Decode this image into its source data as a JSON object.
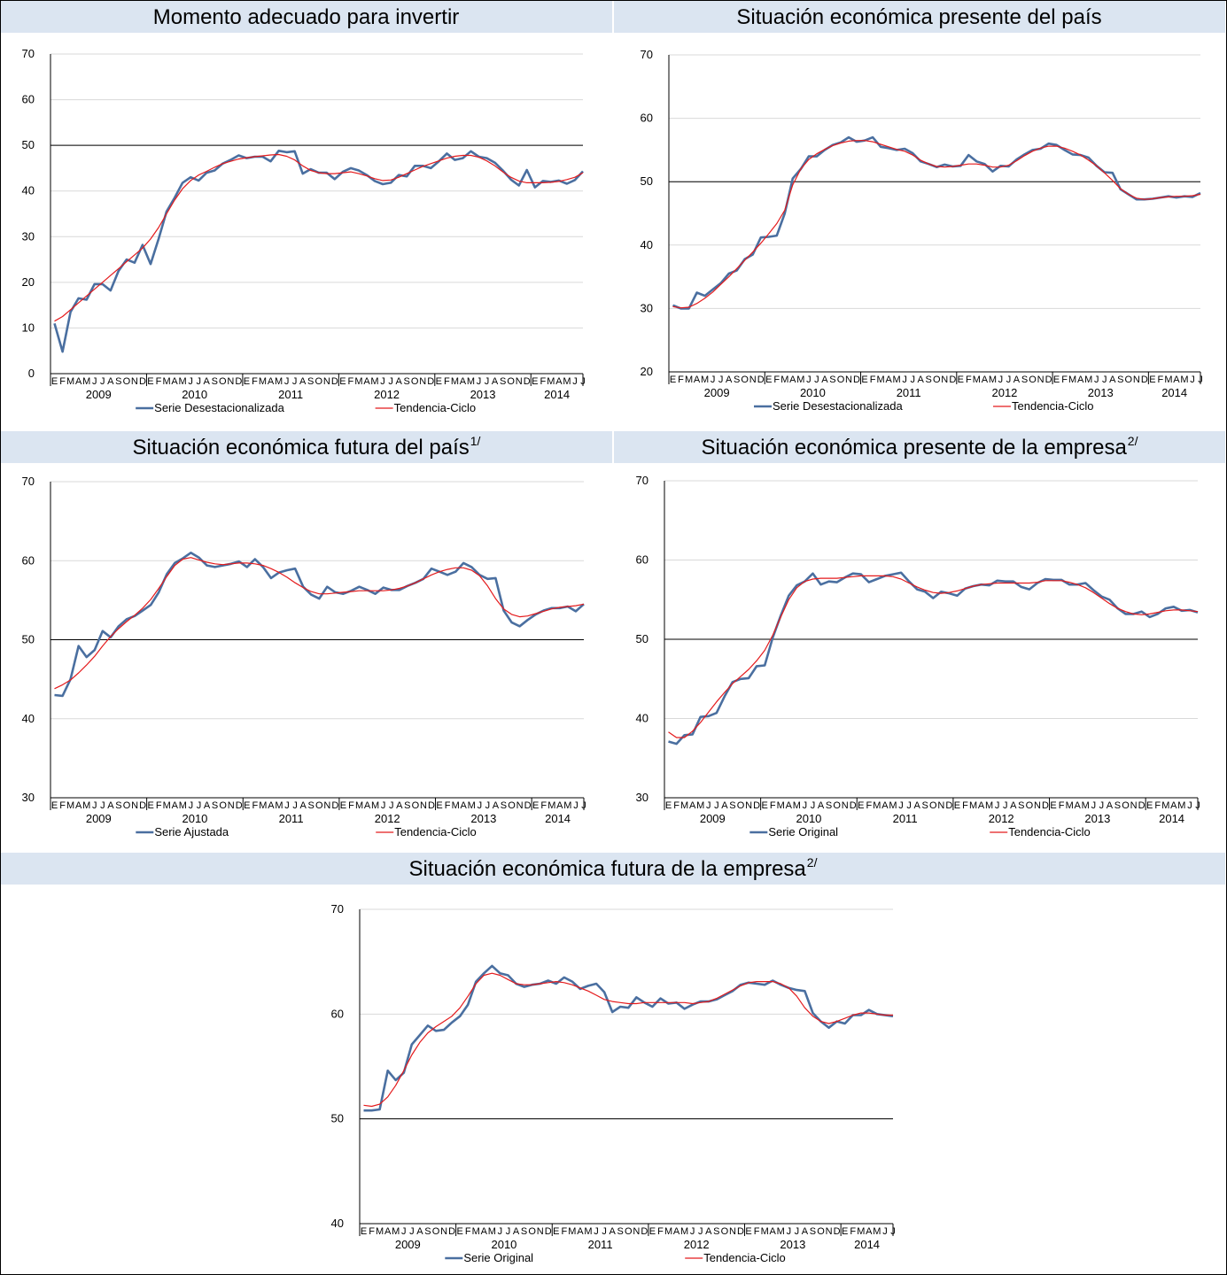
{
  "colors": {
    "serie": "#4a6fa0",
    "tendencia": "#e41a1c",
    "title_bg": "#dbe5f1",
    "grid": "#d9d9d9"
  },
  "months": [
    "E",
    "F",
    "M",
    "A",
    "M",
    "J",
    "J",
    "A",
    "S",
    "O",
    "N",
    "D"
  ],
  "years": [
    "2009",
    "2010",
    "2011",
    "2012",
    "2013",
    "2014"
  ],
  "charts": [
    {
      "id": "momento",
      "title": "Momento adecuado para invertir",
      "sup": "",
      "chart_data": {
        "type": "line",
        "ylim": [
          0,
          70
        ],
        "yticks": [
          0,
          10,
          20,
          30,
          40,
          50,
          60,
          70
        ],
        "threshold": 50,
        "legend": [
          "Serie Desestacionalizada",
          "Tendencia-Ciclo"
        ],
        "series": [
          {
            "name": "Serie Desestacionalizada",
            "values": [
              11,
              4.8,
              13.5,
              16.5,
              16.2,
              19.6,
              19.6,
              18.2,
              22.5,
              25,
              24.3,
              28.2,
              24,
              29.5,
              35.5,
              38.5,
              41.8,
              43,
              42.3,
              44,
              44.5,
              46,
              46.8,
              47.8,
              47.2,
              47.5,
              47.5,
              46.5,
              48.8,
              48.5,
              48.7,
              43.8,
              44.8,
              44,
              44,
              42.6,
              44.2,
              45,
              44.5,
              43.5,
              42.2,
              41.5,
              41.8,
              43.5,
              43.2,
              45.5,
              45.5,
              45,
              46.5,
              48.2,
              46.8,
              47.2,
              48.7,
              47.5,
              47.2,
              46.2,
              44.5,
              42.5,
              41.2,
              44.6,
              40.8,
              42.2,
              42,
              42.3,
              41.6,
              42.4,
              44.3
            ]
          },
          {
            "name": "Tendencia-Ciclo",
            "values": [
              11.5,
              12.5,
              14,
              15.5,
              17,
              18.5,
              20,
              21.5,
              23,
              24.5,
              26,
              27.5,
              29.5,
              32,
              35,
              38,
              40.5,
              42.3,
              43.5,
              44.3,
              45.2,
              46,
              46.5,
              47,
              47.3,
              47.5,
              47.7,
              47.9,
              48,
              47.6,
              46.8,
              45.5,
              44.5,
              44,
              43.8,
              43.8,
              44,
              44.2,
              43.8,
              43.3,
              42.7,
              42.3,
              42.4,
              43,
              43.8,
              44.6,
              45.4,
              46,
              46.6,
              47.2,
              47.6,
              47.8,
              47.8,
              47.4,
              46.6,
              45.5,
              44.2,
              43,
              42.2,
              41.8,
              41.8,
              41.8,
              41.9,
              42.1,
              42.5,
              43,
              44
            ]
          }
        ]
      }
    },
    {
      "id": "presente-pais",
      "title": "Situación económica presente del país",
      "sup": "",
      "chart_data": {
        "type": "line",
        "ylim": [
          20,
          70
        ],
        "yticks": [
          20,
          30,
          40,
          50,
          60,
          70
        ],
        "threshold": 50,
        "legend": [
          "Serie Desestacionalizada",
          "Tendencia-Ciclo"
        ],
        "series": [
          {
            "name": "Serie Desestacionalizada",
            "values": [
              30.5,
              30,
              30,
              32.5,
              32,
              33,
              34,
              35.5,
              36,
              37.8,
              38.5,
              41.2,
              41.3,
              41.5,
              45,
              50.5,
              52,
              54,
              54,
              55,
              55.8,
              56.2,
              57,
              56.3,
              56.5,
              57,
              55.5,
              55.3,
              55,
              55.2,
              54.5,
              53.2,
              52.8,
              52.3,
              52.7,
              52.4,
              52.5,
              54.2,
              53.2,
              52.8,
              51.6,
              52.5,
              52.4,
              53.5,
              54.3,
              55,
              55.2,
              56,
              55.8,
              55,
              54.3,
              54.2,
              53.8,
              52.5,
              51.5,
              51.4,
              48.8,
              48,
              47.2,
              47.2,
              47.3,
              47.5,
              47.7,
              47.5,
              47.7,
              47.6,
              48.2
            ]
          },
          {
            "name": "Tendencia-Ciclo",
            "values": [
              30.3,
              30.1,
              30.2,
              30.8,
              31.6,
              32.6,
              33.8,
              35,
              36.3,
              37.6,
              38.9,
              40.3,
              41.8,
              43.4,
              45.5,
              49.5,
              52,
              53.5,
              54.4,
              55.1,
              55.7,
              56.1,
              56.4,
              56.5,
              56.5,
              56.3,
              55.9,
              55.5,
              55.1,
              54.8,
              54.2,
              53.4,
              52.8,
              52.4,
              52.3,
              52.4,
              52.6,
              52.8,
              52.8,
              52.6,
              52.3,
              52.3,
              52.6,
              53.3,
              54.1,
              54.8,
              55.3,
              55.6,
              55.6,
              55.3,
              54.8,
              54.2,
              53.4,
              52.5,
              51.4,
              50.2,
              48.9,
              48,
              47.4,
              47.2,
              47.3,
              47.5,
              47.6,
              47.7,
              47.7,
              47.8,
              48
            ]
          }
        ]
      }
    },
    {
      "id": "futura-pais",
      "title": "Situación económica futura del país",
      "sup": "1/",
      "chart_data": {
        "type": "line",
        "ylim": [
          30,
          70
        ],
        "yticks": [
          30,
          40,
          50,
          60,
          70
        ],
        "threshold": 50,
        "legend": [
          "Serie Ajustada",
          "Tendencia-Ciclo"
        ],
        "series": [
          {
            "name": "Serie Ajustada",
            "values": [
              43,
              42.9,
              45,
              49.2,
              47.8,
              48.7,
              51.1,
              50.3,
              51.7,
              52.6,
              53,
              53.7,
              54.4,
              56,
              58.3,
              59.7,
              60.3,
              61,
              60.4,
              59.4,
              59.2,
              59.4,
              59.6,
              59.9,
              59.2,
              60.2,
              59.2,
              57.8,
              58.5,
              58.8,
              59,
              56.7,
              55.7,
              55.2,
              56.7,
              56,
              55.8,
              56.2,
              56.7,
              56.3,
              55.8,
              56.6,
              56.3,
              56.3,
              56.8,
              57.2,
              57.7,
              59,
              58.6,
              58.2,
              58.6,
              59.7,
              59.2,
              58.2,
              57.7,
              57.8,
              53.7,
              52.2,
              51.7,
              52.5,
              53.2,
              53.7,
              54,
              54,
              54.2,
              53.6,
              54.5
            ]
          },
          {
            "name": "Tendencia-Ciclo",
            "values": [
              43.8,
              44.3,
              44.9,
              45.8,
              46.8,
              47.9,
              49.2,
              50.4,
              51.4,
              52.3,
              53.1,
              54,
              55.1,
              56.5,
              58,
              59.4,
              60.2,
              60.4,
              60.1,
              59.8,
              59.6,
              59.5,
              59.6,
              59.7,
              59.7,
              59.6,
              59.4,
              59,
              58.5,
              57.9,
              57.2,
              56.6,
              56.1,
              55.8,
              55.8,
              55.9,
              56,
              56.1,
              56.2,
              56.2,
              56.2,
              56.2,
              56.3,
              56.5,
              56.8,
              57.2,
              57.7,
              58.2,
              58.6,
              58.9,
              59.1,
              59.1,
              58.8,
              58.1,
              56.8,
              55.2,
              53.9,
              53.2,
              52.9,
              53,
              53.3,
              53.6,
              53.9,
              54.1,
              54.2,
              54.3,
              54.5
            ]
          }
        ]
      }
    },
    {
      "id": "presente-empresa",
      "title": "Situación económica presente de la empresa",
      "sup": "2/",
      "chart_data": {
        "type": "line",
        "ylim": [
          30,
          70
        ],
        "yticks": [
          30,
          40,
          50,
          60,
          70
        ],
        "threshold": 50,
        "legend": [
          "Serie Original",
          "Tendencia-Ciclo"
        ],
        "series": [
          {
            "name": "Serie Original",
            "values": [
              37.1,
              36.8,
              37.9,
              38,
              40.2,
              40.3,
              40.7,
              42.8,
              44.6,
              45,
              45.1,
              46.6,
              46.7,
              50.2,
              53,
              55.5,
              56.8,
              57.3,
              58.3,
              56.9,
              57.3,
              57.2,
              57.8,
              58.3,
              58.2,
              57.2,
              57.6,
              58,
              58.2,
              58.4,
              57.3,
              56.3,
              56,
              55.2,
              56,
              55.8,
              55.5,
              56.4,
              56.7,
              56.9,
              56.8,
              57.4,
              57.3,
              57.3,
              56.6,
              56.3,
              57.1,
              57.6,
              57.5,
              57.5,
              56.9,
              56.9,
              57.1,
              56.2,
              55.4,
              55,
              53.9,
              53.2,
              53.2,
              53.5,
              52.8,
              53.2,
              53.9,
              54.1,
              53.6,
              53.7,
              53.4
            ]
          },
          {
            "name": "Tendencia-Ciclo",
            "values": [
              38.3,
              37.6,
              37.6,
              38.4,
              39.5,
              40.8,
              42.1,
              43.3,
              44.4,
              45.3,
              46.2,
              47.3,
              48.6,
              50.5,
              52.8,
              55,
              56.5,
              57.3,
              57.6,
              57.7,
              57.7,
              57.7,
              57.8,
              57.9,
              58,
              58,
              58,
              58,
              57.9,
              57.6,
              57.1,
              56.6,
              56.2,
              55.9,
              55.8,
              55.9,
              56.1,
              56.4,
              56.7,
              56.9,
              57,
              57.1,
              57.1,
              57.1,
              57.1,
              57.1,
              57.2,
              57.4,
              57.4,
              57.4,
              57.2,
              56.9,
              56.5,
              55.9,
              55.2,
              54.5,
              53.9,
              53.5,
              53.2,
              53.1,
              53.2,
              53.4,
              53.6,
              53.7,
              53.7,
              53.6,
              53.5
            ]
          }
        ]
      }
    },
    {
      "id": "futura-empresa",
      "title": "Situación económica futura de la empresa",
      "sup": "2/",
      "chart_data": {
        "type": "line",
        "ylim": [
          40,
          70
        ],
        "yticks": [
          40,
          50,
          60,
          70
        ],
        "threshold": 50,
        "legend": [
          "Serie Original",
          "Tendencia-Ciclo"
        ],
        "series": [
          {
            "name": "Serie Original",
            "values": [
              50.8,
              50.8,
              50.9,
              54.6,
              53.7,
              54.4,
              57.1,
              58,
              58.9,
              58.4,
              58.5,
              59.2,
              59.8,
              60.9,
              63.1,
              63.9,
              64.6,
              63.9,
              63.7,
              62.9,
              62.6,
              62.8,
              62.9,
              63.2,
              62.9,
              63.5,
              63.1,
              62.4,
              62.7,
              62.9,
              62.1,
              60.2,
              60.7,
              60.6,
              61.6,
              61.1,
              60.7,
              61.5,
              61,
              61.1,
              60.5,
              60.9,
              61.2,
              61.2,
              61.4,
              61.8,
              62.2,
              62.8,
              63,
              62.9,
              62.8,
              63.2,
              62.8,
              62.5,
              62.3,
              62.2,
              60.1,
              59.3,
              58.7,
              59.3,
              59.1,
              59.9,
              59.9,
              60.4,
              60,
              59.9,
              59.8
            ]
          },
          {
            "name": "Tendencia-Ciclo",
            "values": [
              51.3,
              51.2,
              51.4,
              52.1,
              53.2,
              54.6,
              56.1,
              57.3,
              58.2,
              58.8,
              59.3,
              59.8,
              60.6,
              61.7,
              62.9,
              63.7,
              63.9,
              63.7,
              63.3,
              62.9,
              62.8,
              62.8,
              62.9,
              63,
              63.1,
              63,
              62.8,
              62.5,
              62.2,
              61.8,
              61.4,
              61.2,
              61.1,
              61,
              61,
              61.1,
              61.1,
              61.1,
              61.1,
              61.1,
              61.1,
              61,
              61.1,
              61.2,
              61.5,
              61.9,
              62.3,
              62.7,
              63,
              63.1,
              63.1,
              63.1,
              62.9,
              62.5,
              61.7,
              60.6,
              59.8,
              59.3,
              59.1,
              59.3,
              59.6,
              59.9,
              60.1,
              60.1,
              60,
              59.9,
              59.9
            ]
          }
        ]
      }
    }
  ]
}
